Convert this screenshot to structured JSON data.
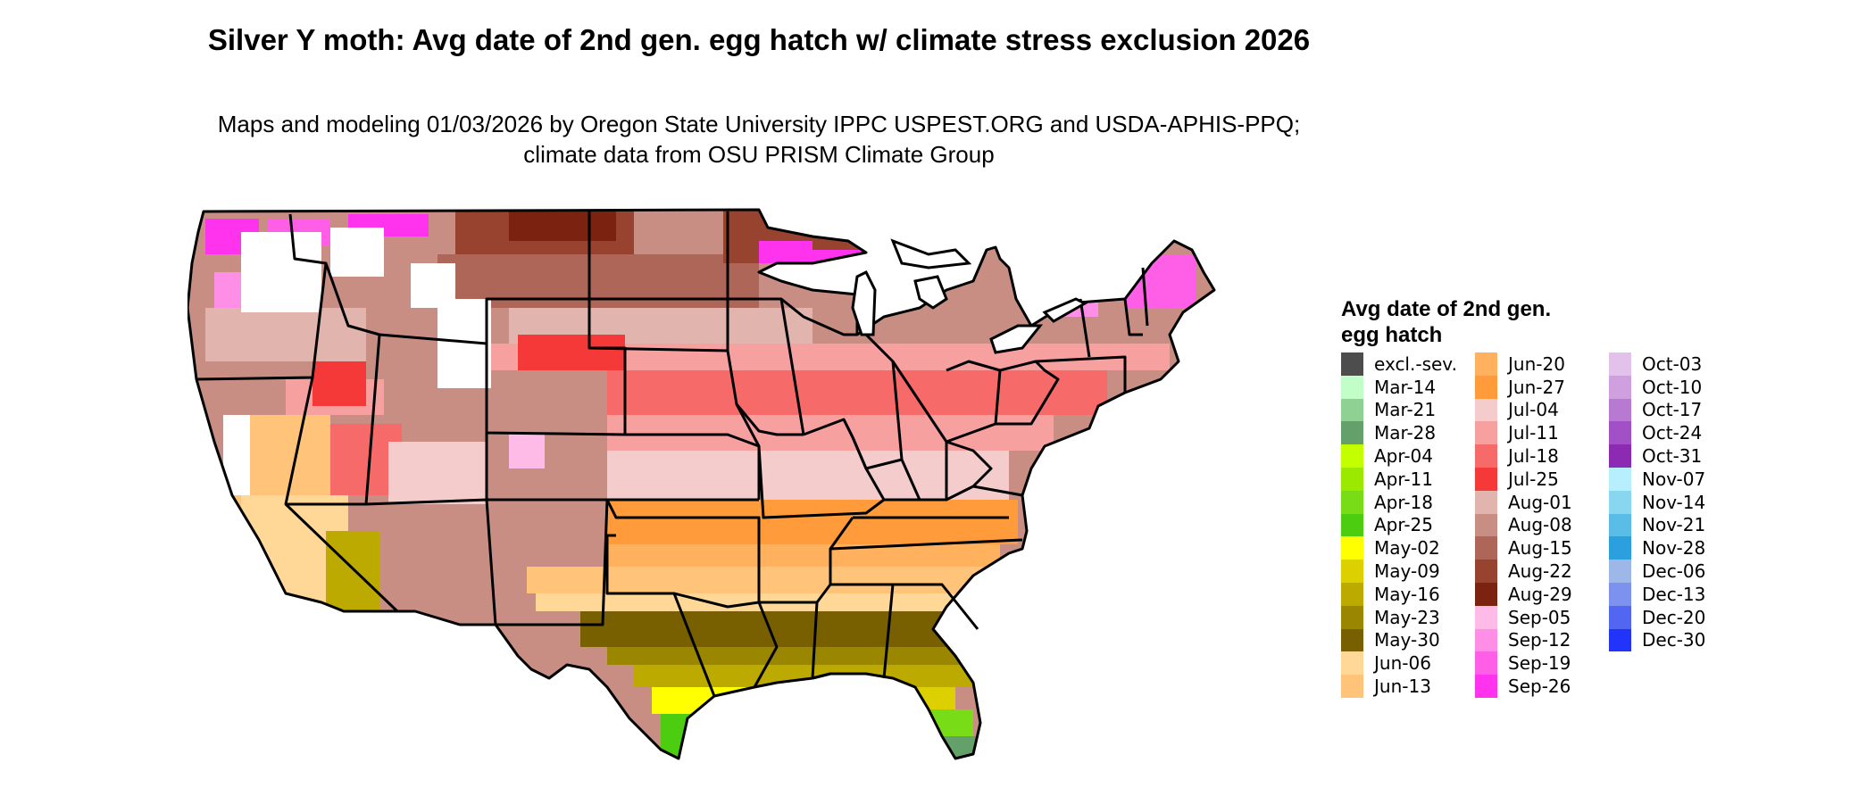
{
  "title": "Silver Y moth: Avg date of 2nd gen. egg hatch w/ climate stress exclusion 2026",
  "subtitle": "Maps and modeling 01/03/2026 by Oregon State University IPPC USPEST.ORG and USDA-APHIS-PPQ; climate data from OSU PRISM Climate Group",
  "legend": {
    "title": "Avg date of 2nd gen. egg hatch",
    "items": [
      {
        "label": "excl.-sev.",
        "color": "#4d4d4d"
      },
      {
        "label": "Mar-14",
        "color": "#c2ffc8"
      },
      {
        "label": "Mar-21",
        "color": "#8fd093"
      },
      {
        "label": "Mar-28",
        "color": "#63a06a"
      },
      {
        "label": "Apr-04",
        "color": "#c4ff00"
      },
      {
        "label": "Apr-11",
        "color": "#9be800"
      },
      {
        "label": "Apr-18",
        "color": "#78dc16"
      },
      {
        "label": "Apr-25",
        "color": "#4ccd10"
      },
      {
        "label": "May-02",
        "color": "#ffff00"
      },
      {
        "label": "May-09",
        "color": "#ddd000"
      },
      {
        "label": "May-16",
        "color": "#bcaa00"
      },
      {
        "label": "May-23",
        "color": "#9b8600"
      },
      {
        "label": "May-30",
        "color": "#786000"
      },
      {
        "label": "Jun-06",
        "color": "#ffd898"
      },
      {
        "label": "Jun-13",
        "color": "#ffc479"
      },
      {
        "label": "Jun-20",
        "color": "#ffb15e"
      },
      {
        "label": "Jun-27",
        "color": "#ff9b3a"
      },
      {
        "label": "Jul-04",
        "color": "#f5cccc"
      },
      {
        "label": "Jul-11",
        "color": "#f7a0a0"
      },
      {
        "label": "Jul-18",
        "color": "#f66a6a"
      },
      {
        "label": "Jul-25",
        "color": "#f53838"
      },
      {
        "label": "Aug-01",
        "color": "#e1b4ad"
      },
      {
        "label": "Aug-08",
        "color": "#c88e84"
      },
      {
        "label": "Aug-15",
        "color": "#ae6658"
      },
      {
        "label": "Aug-22",
        "color": "#97432f"
      },
      {
        "label": "Aug-29",
        "color": "#7b2210"
      },
      {
        "label": "Sep-05",
        "color": "#ffbbe8"
      },
      {
        "label": "Sep-12",
        "color": "#ff8ee6"
      },
      {
        "label": "Sep-19",
        "color": "#ff5ee6"
      },
      {
        "label": "Sep-26",
        "color": "#ff33ee"
      },
      {
        "label": "Oct-03",
        "color": "#e2c1ea"
      },
      {
        "label": "Oct-10",
        "color": "#cf9fe0"
      },
      {
        "label": "Oct-17",
        "color": "#b879d2"
      },
      {
        "label": "Oct-24",
        "color": "#a250c5"
      },
      {
        "label": "Oct-31",
        "color": "#8c2ab4"
      },
      {
        "label": "Nov-07",
        "color": "#b8efff"
      },
      {
        "label": "Nov-14",
        "color": "#88d6f0"
      },
      {
        "label": "Nov-21",
        "color": "#5abde8"
      },
      {
        "label": "Nov-28",
        "color": "#2ca0de"
      },
      {
        "label": "Dec-06",
        "color": "#9db8e8"
      },
      {
        "label": "Dec-13",
        "color": "#7d92ee"
      },
      {
        "label": "Dec-20",
        "color": "#5266f2"
      },
      {
        "label": "Dec-30",
        "color": "#2234f9"
      }
    ]
  }
}
